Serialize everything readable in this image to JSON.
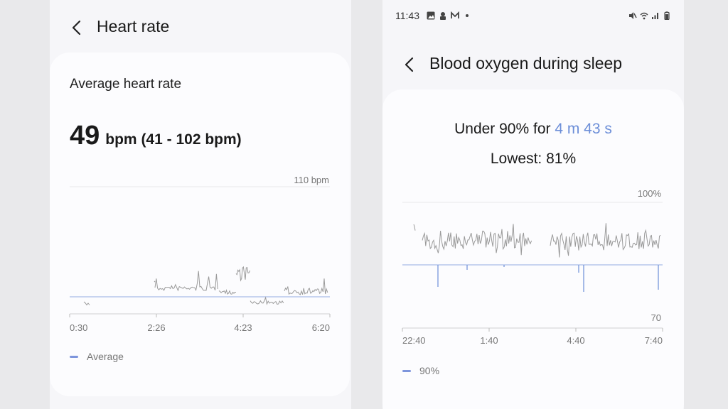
{
  "left": {
    "title": "Heart rate",
    "card_label": "Average heart rate",
    "big_value": "49",
    "big_unit": "bpm (41 - 102 bpm)",
    "legend": "Average"
  },
  "right": {
    "status": {
      "time": "11:43"
    },
    "title": "Blood oxygen during sleep",
    "under_prefix": "Under 90% for ",
    "under_value": "4 m 43 s",
    "lowest": "Lowest: 81%",
    "legend": "90%"
  },
  "colors": {
    "accent": "#6c8ed8",
    "line": "#9a9a9a",
    "reference": "#a9bde8"
  },
  "chart_data": [
    {
      "type": "line",
      "x": [
        "0:30",
        "2:26",
        "4:23",
        "6:20"
      ],
      "y_top_label": "110 bpm",
      "ylim": [
        40,
        110
      ],
      "reference": {
        "name": "Average",
        "value": 49
      },
      "range": [
        41,
        102
      ]
    },
    {
      "type": "line",
      "x": [
        "22:40",
        "1:40",
        "4:40",
        "7:40"
      ],
      "y_top_label": "100%",
      "y_bottom_label": "70",
      "ylim": [
        70,
        100
      ],
      "reference": {
        "name": "90%",
        "value": 90
      },
      "lowest": 81
    }
  ]
}
